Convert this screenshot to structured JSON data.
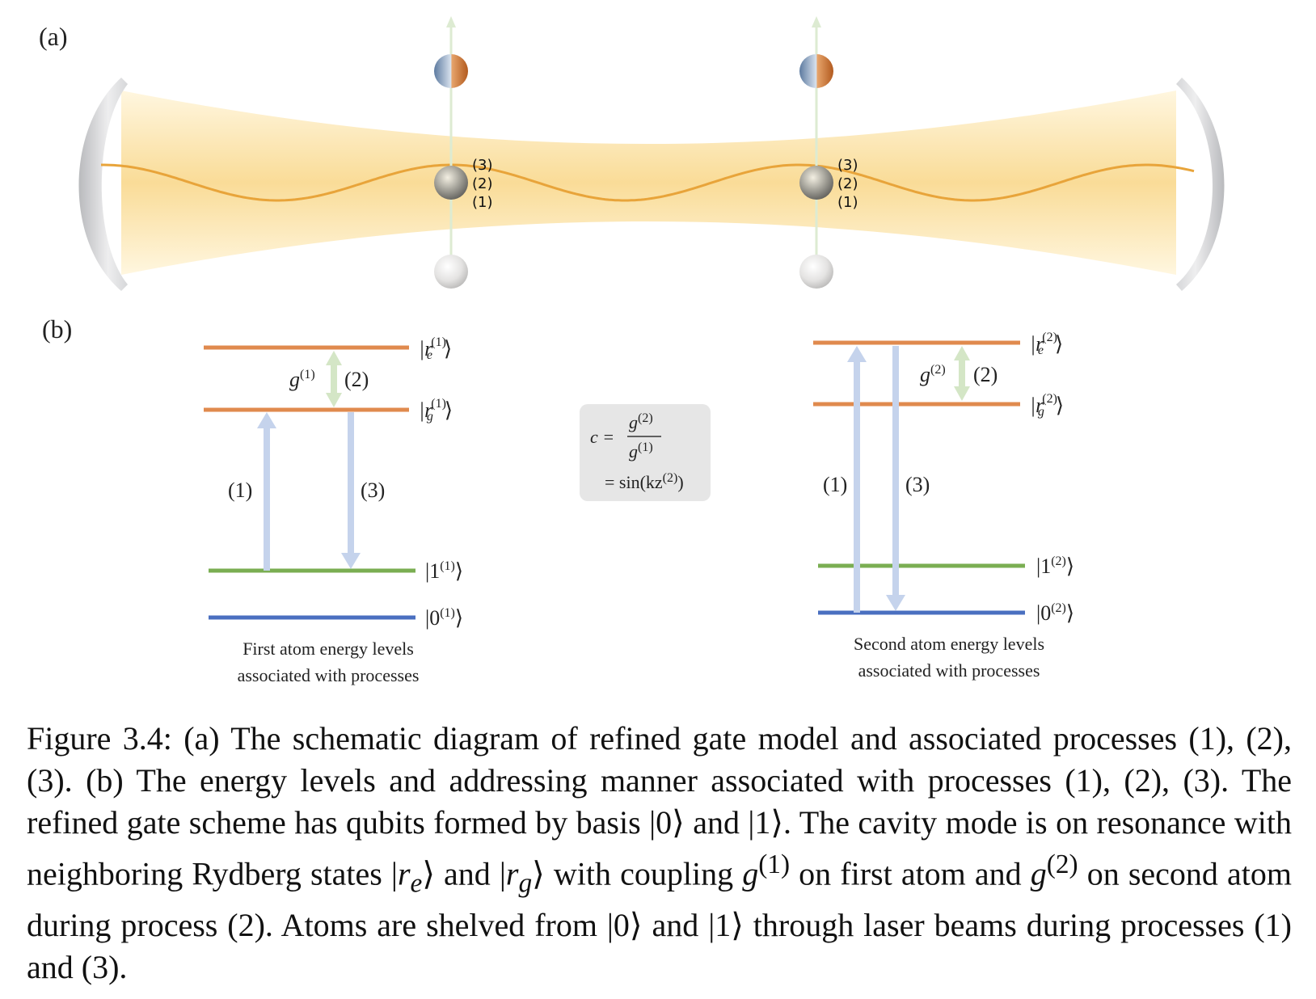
{
  "panel_a_label": "(a)",
  "panel_b_label": "(b)",
  "atom_process_labels": [
    "(3)",
    "(2)",
    "(1)"
  ],
  "first_atom": {
    "levels": {
      "re": "|r",
      "re_sub": "e",
      "re_sup": "(1)",
      "rg": "|r",
      "rg_sub": "g",
      "rg_sup": "(1)",
      "one": "|1",
      "one_sup": "(1)",
      "zero": "|0",
      "zero_sup": "(1)",
      "close": "⟩"
    },
    "coupling": "g",
    "coupling_sup": "(1)",
    "proc1": "(1)",
    "proc2": "(2)",
    "proc3": "(3)",
    "caption_line1": "First atom energy levels",
    "caption_line2": "associated with processes"
  },
  "second_atom": {
    "levels": {
      "re": "|r",
      "re_sub": "e",
      "re_sup": "(2)",
      "rg": "|r",
      "rg_sub": "g",
      "rg_sup": "(2)",
      "one": "|1",
      "one_sup": "(2)",
      "zero": "|0",
      "zero_sup": "(2)",
      "close": "⟩"
    },
    "coupling": "g",
    "coupling_sup": "(2)",
    "proc1": "(1)",
    "proc2": "(2)",
    "proc3": "(3)",
    "caption_line1": "Second atom energy levels",
    "caption_line2": "associated with processes"
  },
  "formula": {
    "lhs": "c =",
    "num": "g",
    "num_sup": "(2)",
    "den": "g",
    "den_sup": "(1)",
    "line2": "= sin(kz",
    "line2_sup": "(2)",
    "line2_end": ")"
  },
  "caption": {
    "p1": "Figure 3.4: (a) The schematic diagram of refined gate model and associated processes (1), (2), (3). (b) The energy levels and addressing manner associated with processes (1), (2), (3). The refined gate scheme has qubits formed by basis |0⟩ and |1⟩. The cavity mode is on resonance with neighboring Rydberg states |",
    "re_r": "r",
    "re_sub": "e",
    "p2": "⟩ and |",
    "rg_r": "r",
    "rg_sub": "g",
    "p3": "⟩ with coupling ",
    "g1": "g",
    "g1_sup": "(1)",
    "p4": " on first atom and ",
    "g2": "g",
    "g2_sup": "(2)",
    "p5": " on second atom during process (2). Atoms are shelved from |0⟩ and |1⟩ through laser beams during processes (1) and (3)."
  },
  "colors": {
    "rydberg_level": "#E08A4E",
    "level_one": "#7AAE52",
    "level_zero": "#4A6FC0",
    "laser_arrow": "#C5D3EC",
    "cavity_arrow": "#D4E6C6",
    "cavity_beam": "#FBE3A6",
    "standing_wave": "#E8A43A",
    "mirror": "#C9CACC"
  }
}
